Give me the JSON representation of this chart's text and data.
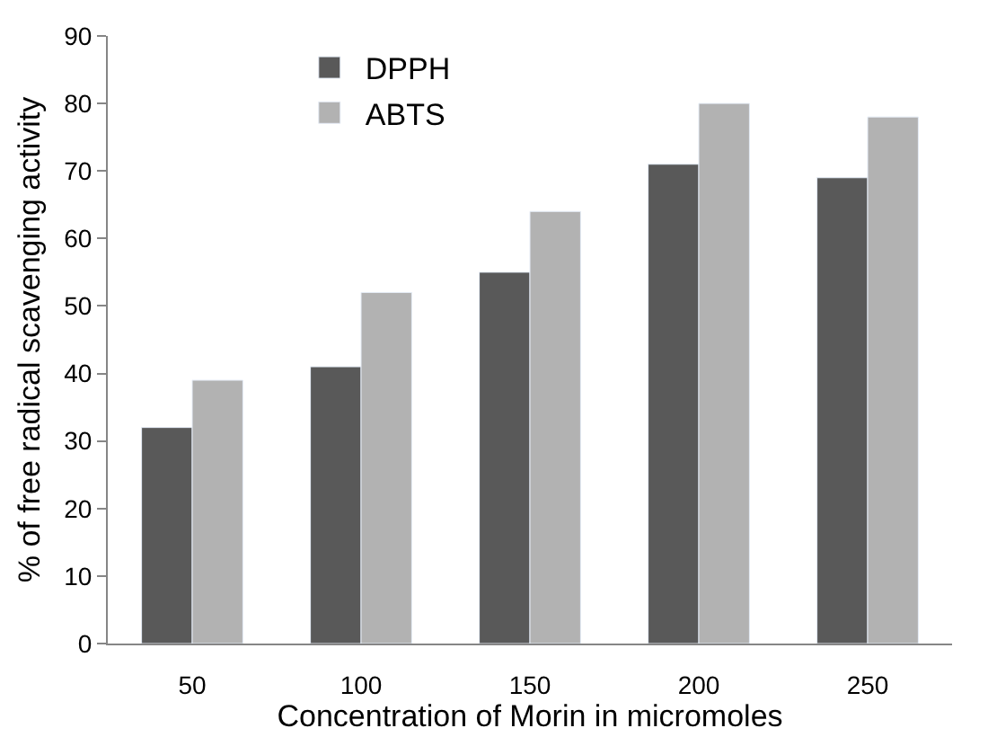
{
  "chart_data": {
    "type": "bar",
    "xlabel": "Concentration of Morin in micromoles",
    "ylabel": "% of free radical scavenging activity",
    "categories": [
      "50",
      "100",
      "150",
      "200",
      "250"
    ],
    "series": [
      {
        "name": "DPPH",
        "color": "#595959",
        "values": [
          32,
          41,
          55,
          71,
          69
        ]
      },
      {
        "name": "ABTS",
        "color": "#b2b2b2",
        "values": [
          39,
          52,
          64,
          80,
          78
        ]
      }
    ],
    "ylim": [
      0,
      90
    ],
    "yticks": [
      0,
      10,
      20,
      30,
      40,
      50,
      60,
      70,
      80,
      90
    ],
    "legend": "top left"
  }
}
